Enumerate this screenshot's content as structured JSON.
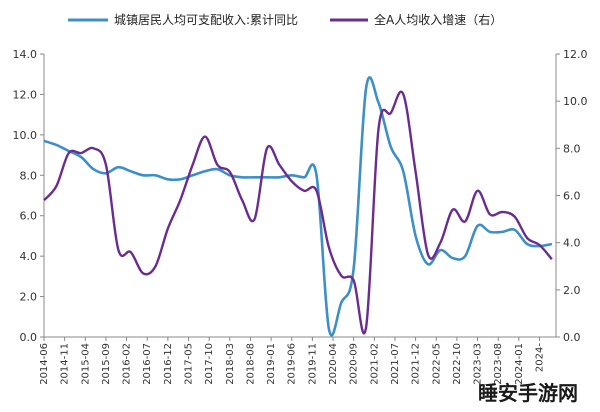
{
  "chart_data": {
    "type": "line",
    "x": [
      "2014-06",
      "2014-09",
      "2014-12",
      "2015-03",
      "2015-06",
      "2015-09",
      "2015-12",
      "2016-03",
      "2016-06",
      "2016-09",
      "2016-12",
      "2017-03",
      "2017-06",
      "2017-09",
      "2017-12",
      "2018-03",
      "2018-06",
      "2018-09",
      "2018-12",
      "2019-03",
      "2019-06",
      "2019-09",
      "2019-12",
      "2020-03",
      "2020-06",
      "2020-09",
      "2020-12",
      "2021-03",
      "2021-06",
      "2021-09",
      "2021-12",
      "2022-03",
      "2022-06",
      "2022-09",
      "2022-12",
      "2023-03",
      "2023-06",
      "2023-09",
      "2023-12",
      "2024-03",
      "2024-06",
      "2024-09"
    ],
    "x_tick_labels": [
      "2014-06",
      "2014-11",
      "2015-04",
      "2015-09",
      "2016-02",
      "2016-07",
      "2016-12",
      "2017-05",
      "2017-10",
      "2018-03",
      "2018-08",
      "2019-01",
      "2019-06",
      "2019-11",
      "2020-04",
      "2020-09",
      "2021-02",
      "2021-07",
      "2021-12",
      "2022-05",
      "2022-10",
      "2023-03",
      "2023-08",
      "2024-01",
      "2024-06"
    ],
    "x_tick_display": [
      "2014-06",
      "2014-11",
      "2015-04",
      "2015-09",
      "2016-02",
      "2016-07",
      "2016-12",
      "2017-05",
      "2017-10",
      "2018-03",
      "2018-08",
      "2019-01",
      "2019-06",
      "2019-11",
      "2020-04",
      "2020-09",
      "2021-02",
      "2021-07",
      "2021-12",
      "2022-05",
      "2022-10",
      "2023-03",
      "2023-08",
      "2024-01",
      "2024-"
    ],
    "series": [
      {
        "name": "城镇居民人均可支配收入:累计同比",
        "axis": "left",
        "color": "#3d8fc6",
        "values": [
          9.7,
          9.5,
          9.2,
          8.9,
          8.3,
          8.1,
          8.4,
          8.2,
          8.0,
          8.0,
          7.8,
          7.8,
          8.0,
          8.2,
          8.3,
          8.0,
          7.9,
          7.9,
          7.9,
          7.9,
          8.0,
          7.9,
          8.0,
          0.4,
          1.7,
          3.4,
          12.3,
          11.6,
          9.4,
          8.2,
          5.0,
          3.6,
          4.3,
          3.9,
          4.0,
          5.5,
          5.2,
          5.2,
          5.3,
          4.6,
          4.5,
          4.6
        ]
      },
      {
        "name": "全A人均收入增速（右）",
        "axis": "right",
        "color": "#6a2c8f",
        "values": [
          5.8,
          6.4,
          7.8,
          7.8,
          8.0,
          7.3,
          3.7,
          3.6,
          2.7,
          3.0,
          4.6,
          5.8,
          7.3,
          8.5,
          7.3,
          7.0,
          5.8,
          5.0,
          8.0,
          7.3,
          6.6,
          6.2,
          6.2,
          3.8,
          2.6,
          2.4,
          0.4,
          8.8,
          9.5,
          10.3,
          7.0,
          3.5,
          4.0,
          5.4,
          4.9,
          6.2,
          5.2,
          5.3,
          5.1,
          4.2,
          3.9,
          3.3
        ]
      }
    ],
    "y_left": {
      "ticks": [
        0.0,
        2.0,
        4.0,
        6.0,
        8.0,
        10.0,
        12.0,
        14.0
      ],
      "tick_labels": [
        "0.0",
        "2.0",
        "4.0",
        "6.0",
        "8.0",
        "10.0",
        "12.0",
        "14.0"
      ],
      "ylim": [
        0,
        14
      ]
    },
    "y_right": {
      "ticks": [
        0.0,
        2.0,
        4.0,
        6.0,
        8.0,
        10.0,
        12.0
      ],
      "tick_labels": [
        "0.0",
        "2.0",
        "4.0",
        "6.0",
        "8.0",
        "10.0",
        "12.0"
      ],
      "ylim": [
        0,
        12
      ]
    },
    "legend_position": "top",
    "grid": false
  },
  "legend": {
    "series1_label": "城镇居民人均可支配收入:累计同比",
    "series2_label": "全A人均收入增速（右）"
  },
  "watermark": "睡安手游网"
}
